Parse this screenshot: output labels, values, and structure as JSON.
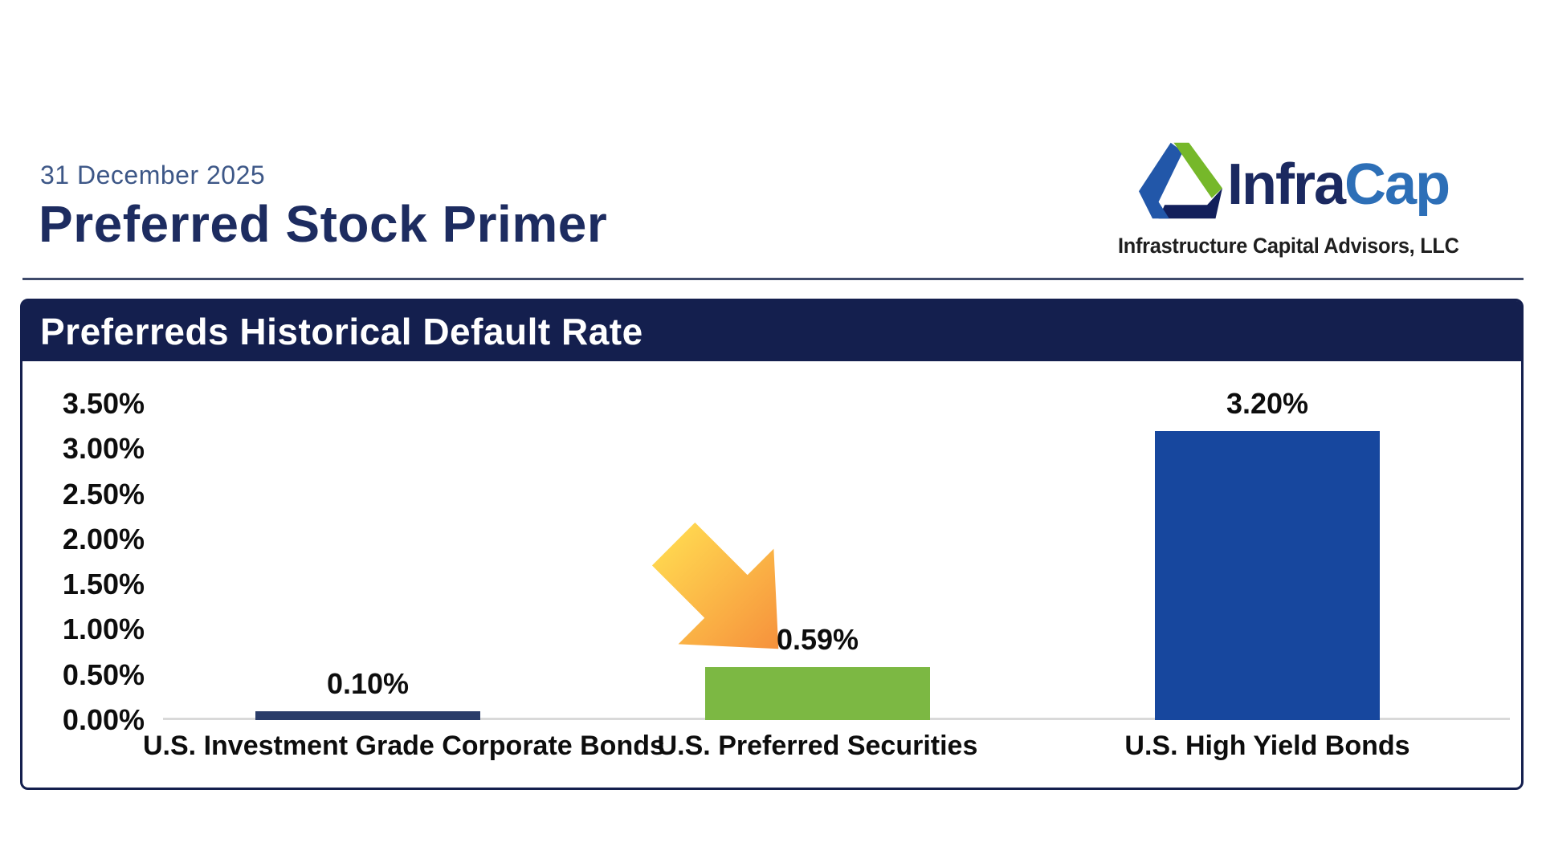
{
  "header": {
    "date": "31 December 2025",
    "title": "Preferred Stock Primer"
  },
  "brand": {
    "name_part1": "Infra",
    "name_part2": "Cap",
    "tagline": "Infrastructure Capital Advisors, LLC"
  },
  "panel": {
    "title": "Preferreds Historical Default Rate"
  },
  "colors": {
    "panel_navy": "#141F4E",
    "title_navy": "#1D2C60",
    "date_blue": "#3D5787",
    "brand_navy": "#1B2960",
    "brand_blue": "#2D6FB7",
    "logo_green": "#76B82A",
    "logo_blue": "#2257A9",
    "logo_navy": "#121F5B",
    "baseline_gray": "#D9D9D9",
    "arrow_gradient_start": "#FFD44F",
    "arrow_gradient_end": "#F6913C"
  },
  "chart_data": {
    "type": "bar",
    "title": "Preferreds Historical Default Rate",
    "categories": [
      "U.S. Investment Grade Corporate Bonds",
      "U.S. Preferred Securities",
      "U.S. High Yield Bonds"
    ],
    "values": [
      0.1,
      0.59,
      3.2
    ],
    "value_labels": [
      "0.10%",
      "0.59%",
      "3.20%"
    ],
    "bar_colors": [
      "#2A3C69",
      "#7CB843",
      "#17479E"
    ],
    "y_ticks": [
      "3.50%",
      "3.00%",
      "2.50%",
      "2.00%",
      "1.50%",
      "1.00%",
      "0.50%",
      "0.00%"
    ],
    "ylim": [
      0,
      3.5
    ],
    "xlabel": "",
    "ylabel": "",
    "grid": false,
    "legend": "none",
    "annotation": {
      "type": "arrow",
      "target_category": "U.S. Preferred Securities",
      "points_at": "0.59%"
    }
  }
}
